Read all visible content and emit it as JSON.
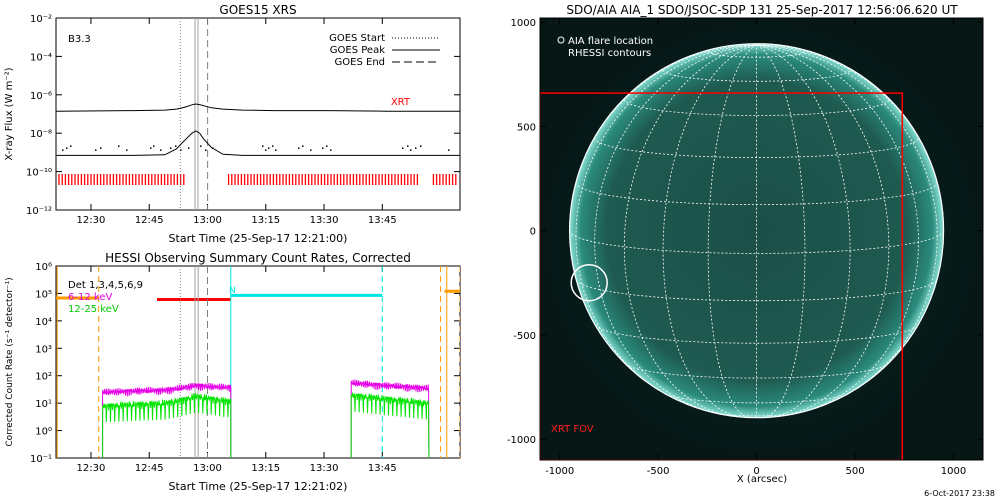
{
  "footer": {
    "date_stamp": "6-Oct-2017 23:38"
  },
  "chart_data": [
    {
      "type": "line",
      "title": "GOES15 XRS",
      "xlabel": "Start Time (25-Sep-17 12:21:00)",
      "ylabel": "X-ray Flux (W m⁻²)",
      "ylog": true,
      "ylim": [
        1e-12,
        0.01
      ],
      "ytick_labels": [
        "10⁻²",
        "10⁻⁴",
        "10⁻⁶",
        "10⁻⁸",
        "10⁻¹⁰",
        "10⁻¹²"
      ],
      "ytick_values": [
        0.01,
        0.0001,
        1e-06,
        1e-08,
        1e-10,
        1e-12
      ],
      "xlim_minutes": [
        0,
        104
      ],
      "xtick_labels": [
        "12:30",
        "12:45",
        "13:00",
        "13:15",
        "13:30",
        "13:45"
      ],
      "xtick_minutes": [
        9,
        24,
        39,
        54,
        69,
        84
      ],
      "class_label": "B3.3",
      "legend": {
        "start": "GOES Start",
        "peak": "GOES Peak",
        "end": "GOES End",
        "placement": "top-right"
      },
      "markers_minutes": {
        "start": 32,
        "peak": 36.3,
        "end": 38
      },
      "xrt_label": "XRT",
      "colors": {
        "xrt": "#ff0000",
        "curve": "#000000"
      },
      "series": [
        {
          "x": [
            0,
            20,
            28,
            31,
            33,
            35,
            36,
            37,
            38,
            40,
            43,
            48,
            56,
            70,
            85,
            100,
            104
          ],
          "values": [
            1.4e-07,
            1.5e-07,
            1.6e-07,
            1.8e-07,
            2.2e-07,
            3e-07,
            3.3e-07,
            3.1e-07,
            2.7e-07,
            2.1e-07,
            1.8e-07,
            1.6e-07,
            1.5e-07,
            1.5e-07,
            1.4e-07,
            1.4e-07,
            1.4e-07
          ]
        },
        {
          "x": [
            0,
            10,
            20,
            28,
            31,
            33,
            35,
            36,
            37,
            38,
            40,
            43,
            48,
            56,
            70,
            85,
            100,
            104
          ],
          "values": [
            7e-10,
            7e-10,
            7e-10,
            7.5e-10,
            1.5e-09,
            4e-09,
            1e-08,
            1.3e-08,
            1e-08,
            5e-09,
            1.8e-09,
            8e-10,
            7e-10,
            7e-10,
            7e-10,
            7e-10,
            7e-10,
            7e-10
          ]
        }
      ]
    },
    {
      "type": "line",
      "title": "HESSI Observing Summary Count Rates, Corrected",
      "xlabel": "Start Time (25-Sep-17 12:21:02)",
      "ylabel": "Corrected Count Rate (s⁻¹ detector⁻¹)",
      "ylog": true,
      "ylim": [
        0.1,
        1000000.0
      ],
      "ytick_labels": [
        "10⁶",
        "10⁵",
        "10⁴",
        "10³",
        "10²",
        "10¹",
        "10⁰",
        "10⁻¹"
      ],
      "ytick_values": [
        1000000.0,
        100000.0,
        10000.0,
        1000.0,
        100.0,
        10.0,
        1.0,
        0.1
      ],
      "xlim_minutes": [
        0,
        104
      ],
      "xtick_labels": [
        "12:30",
        "12:45",
        "13:00",
        "13:15",
        "13:30",
        "13:45"
      ],
      "xtick_minutes": [
        9,
        24,
        39,
        54,
        69,
        84
      ],
      "legend": {
        "det": "Det 1,3,4,5,6,9",
        "e1": "6-12 keV",
        "e2": "12-25 keV",
        "placement": "top-left"
      },
      "n_label": "N",
      "bands": {
        "night": {
          "x": [
            -2,
            11
          ],
          "y": 68000.0
        },
        "saa": {
          "x": [
            26,
            45
          ],
          "y": 60000.0
        },
        "n": {
          "x": [
            45,
            84
          ],
          "y": 85000.0
        },
        "late": {
          "x": [
            100,
            104
          ],
          "y": 120000.0
        }
      },
      "markers_minutes": {
        "start": 32,
        "peak": 36.3,
        "end": 38,
        "n_start": 45,
        "n_end": 84,
        "night_end": 11,
        "late_start": 99
      },
      "series": [
        {
          "name": "6-12 keV",
          "x": [
            12,
            20,
            28,
            32,
            36,
            40,
            44,
            76,
            84,
            96
          ],
          "values": [
            25,
            28,
            30,
            35,
            45,
            40,
            38,
            55,
            45,
            35
          ]
        },
        {
          "name": "12-25 keV",
          "x": [
            12,
            20,
            28,
            32,
            36,
            40,
            44,
            76,
            84,
            96
          ],
          "values": [
            8,
            9,
            10,
            13,
            18,
            15,
            12,
            20,
            15,
            10
          ]
        }
      ],
      "colors": {
        "e1": "#e500e5",
        "e2": "#00e500",
        "n": "#00e5e5",
        "saa": "#ff0000",
        "night": "#ff9900",
        "marker": "#808080"
      }
    },
    {
      "type": "image",
      "title": "SDO/AIA AIA_1 SDO/JSOC-SDP 131 25-Sep-2017 12:56:06.620 UT",
      "xlabel": "X (arcsec)",
      "xlim": [
        -1100,
        1150
      ],
      "ylim": [
        -1100,
        1020
      ],
      "xtick_labels": [
        "-1000",
        "-500",
        "0",
        "500",
        "1000"
      ],
      "xtick_values": [
        -1000,
        -500,
        0,
        500,
        1000
      ],
      "ytick_labels": [
        "1000",
        "500",
        "0",
        "-500",
        "-1000"
      ],
      "ytick_values": [
        1000,
        500,
        0,
        -500,
        -1000
      ],
      "legend": {
        "item1": "AIA flare location",
        "item2": "RHESSI contours"
      },
      "solar_radius": 950,
      "flare_location": [
        -850,
        -250
      ],
      "xrt_fov": {
        "label": "XRT FOV",
        "x": [
          -1100,
          740
        ],
        "y": [
          -1100,
          660
        ]
      },
      "colors": {
        "disk": "#1c6b61",
        "grid": "#ffffff",
        "fov": "#ff0000",
        "background": "#04201e"
      }
    }
  ]
}
